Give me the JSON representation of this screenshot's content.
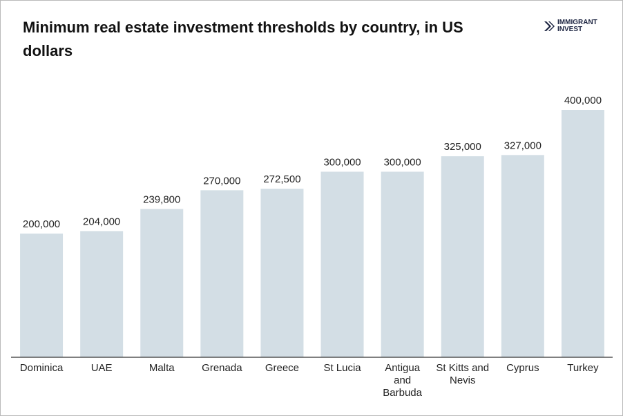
{
  "chart_data": {
    "type": "bar",
    "title": "Minimum real estate investment thresholds by country, in US dollars",
    "categories": [
      "Dominica",
      "UAE",
      "Malta",
      "Grenada",
      "Greece",
      "St Lucia",
      "Antigua and Barbuda",
      "St Kitts and Nevis",
      "Cyprus",
      "Turkey"
    ],
    "values": [
      200000,
      204000,
      239800,
      270000,
      272500,
      300000,
      300000,
      325000,
      327000,
      400000
    ],
    "value_labels": [
      "200,000",
      "204,000",
      "239,800",
      "270,000",
      "272,500",
      "300,000",
      "300,000",
      "325,000",
      "327,000",
      "400,000"
    ],
    "color": "#d3dee5"
  },
  "logo": "IMMIGRANT INVEST"
}
